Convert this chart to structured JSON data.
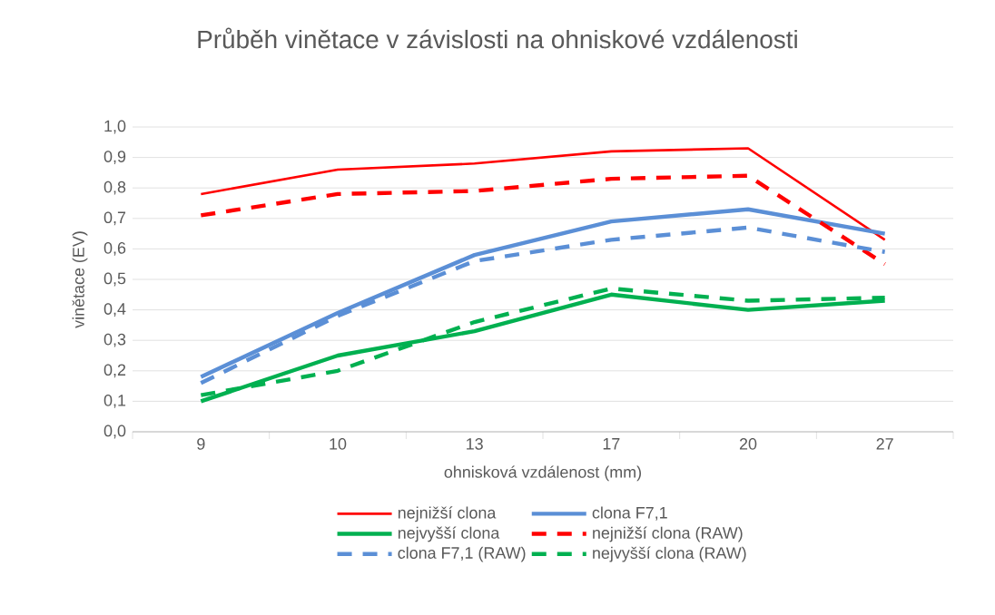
{
  "chart_data": {
    "type": "line",
    "title": "Průběh vinětace v závislosti na ohniskové vzdálenosti",
    "xlabel": "ohnisková vzdálenost (mm)",
    "ylabel": "vinětace (EV)",
    "categories": [
      "9",
      "10",
      "13",
      "17",
      "20",
      "27"
    ],
    "ylim": [
      0,
      1
    ],
    "yticks": [
      {
        "value": 0,
        "label": "0,0"
      },
      {
        "value": 0.1,
        "label": "0,1"
      },
      {
        "value": 0.2,
        "label": "0,2"
      },
      {
        "value": 0.3,
        "label": "0,3"
      },
      {
        "value": 0.4,
        "label": "0,4"
      },
      {
        "value": 0.5,
        "label": "0,5"
      },
      {
        "value": 0.6,
        "label": "0,6"
      },
      {
        "value": 0.7,
        "label": "0,7"
      },
      {
        "value": 0.8,
        "label": "0,8"
      },
      {
        "value": 0.9,
        "label": "0,9"
      },
      {
        "value": 1,
        "label": "1,0"
      }
    ],
    "grid": "y",
    "legend": "bottom",
    "marker": "none",
    "series": [
      {
        "name": "nejnižší clona",
        "color": "#ff0000",
        "line_style": "solid",
        "values": [
          0.78,
          0.86,
          0.88,
          0.92,
          0.93,
          0.63
        ]
      },
      {
        "name": "clona F7,1",
        "color": "#5b8fd6",
        "line_style": "solid",
        "values": [
          0.18,
          0.39,
          0.58,
          0.69,
          0.73,
          0.65
        ]
      },
      {
        "name": "nejvyšší clona",
        "color": "#00b050",
        "line_style": "solid",
        "values": [
          0.1,
          0.25,
          0.33,
          0.45,
          0.4,
          0.43
        ]
      },
      {
        "name": "nejnižší clona (RAW)",
        "color": "#ff0000",
        "line_style": "dashed",
        "values": [
          0.71,
          0.78,
          0.79,
          0.83,
          0.84,
          0.55
        ]
      },
      {
        "name": "clona F7,1 (RAW)",
        "color": "#5b8fd6",
        "line_style": "dashed",
        "values": [
          0.16,
          0.38,
          0.56,
          0.63,
          0.67,
          0.59
        ]
      },
      {
        "name": "nejvyšší clona (RAW)",
        "color": "#00b050",
        "line_style": "dashed",
        "values": [
          0.12,
          0.2,
          0.36,
          0.47,
          0.43,
          0.44
        ]
      }
    ]
  }
}
